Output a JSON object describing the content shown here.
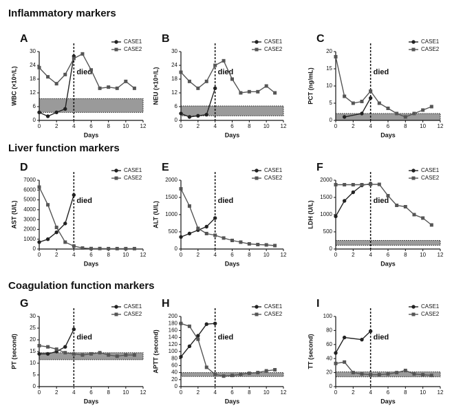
{
  "sections": [
    {
      "title": "Inflammatory markers"
    },
    {
      "title": "Liver function markers"
    },
    {
      "title": "Coagulation function markers"
    }
  ],
  "chart_data": [
    {
      "type": "line",
      "panel": "A",
      "ylabel": "WBC (×10⁹/L)",
      "xlabel": "Days",
      "xlim": [
        0,
        12
      ],
      "xticks": [
        0,
        2,
        4,
        6,
        8,
        10,
        12
      ],
      "ylim": [
        0,
        30
      ],
      "yticks": [
        0,
        6,
        12,
        18,
        24,
        30
      ],
      "series": [
        {
          "name": "CASE1",
          "color": "#222222",
          "marker": "circle",
          "x": [
            0,
            1,
            2,
            3,
            4
          ],
          "values": [
            3.5,
            1.8,
            3.5,
            5,
            28
          ]
        },
        {
          "name": "CASE2",
          "color": "#555555",
          "marker": "square",
          "x": [
            0,
            1,
            2,
            3,
            4,
            5,
            6,
            7,
            8,
            9,
            10,
            11
          ],
          "values": [
            23,
            19,
            16,
            20,
            27,
            29,
            22,
            14,
            14.5,
            14,
            17,
            14
          ]
        }
      ],
      "annotation": {
        "text": "died",
        "x": 4
      },
      "reference_range": [
        3.5,
        9.5
      ]
    },
    {
      "type": "line",
      "panel": "B",
      "ylabel": "NEU (×10⁹/L)",
      "xlabel": "Days",
      "xlim": [
        0,
        12
      ],
      "xticks": [
        0,
        2,
        4,
        6,
        8,
        10,
        12
      ],
      "ylim": [
        0,
        30
      ],
      "yticks": [
        0,
        6,
        12,
        18,
        24,
        30
      ],
      "series": [
        {
          "name": "CASE1",
          "color": "#222222",
          "marker": "circle",
          "x": [
            0,
            1,
            2,
            3,
            4
          ],
          "values": [
            3,
            1.5,
            2,
            2.5,
            14
          ]
        },
        {
          "name": "CASE2",
          "color": "#555555",
          "marker": "square",
          "x": [
            0,
            1,
            2,
            3,
            4,
            5,
            6,
            7,
            8,
            9,
            10,
            11
          ],
          "values": [
            21,
            17,
            14,
            17,
            24,
            26,
            18,
            12,
            12.5,
            12.5,
            15,
            12
          ]
        }
      ],
      "annotation": {
        "text": "died",
        "x": 4
      },
      "reference_range": [
        2,
        6.3
      ]
    },
    {
      "type": "line",
      "panel": "C",
      "ylabel": "PCT (ng/mL)",
      "xlabel": "Days",
      "xlim": [
        0,
        12
      ],
      "xticks": [
        0,
        2,
        4,
        6,
        8,
        10,
        12
      ],
      "ylim": [
        0,
        20
      ],
      "yticks": [
        0,
        5,
        10,
        15,
        20
      ],
      "series": [
        {
          "name": "CASE1",
          "color": "#222222",
          "marker": "circle",
          "x": [
            1,
            3,
            4
          ],
          "values": [
            1,
            2,
            6.5
          ]
        },
        {
          "name": "CASE2",
          "color": "#555555",
          "marker": "square",
          "x": [
            0,
            1,
            2,
            3,
            4,
            5,
            6,
            7,
            8,
            9,
            10,
            11
          ],
          "values": [
            18.5,
            7,
            5,
            5.5,
            8.5,
            5,
            3.5,
            2,
            1,
            2,
            3,
            4
          ]
        }
      ],
      "annotation": {
        "text": "died",
        "x": 4
      },
      "reference_range": [
        0,
        2
      ]
    },
    {
      "type": "line",
      "panel": "D",
      "ylabel": "AST (U/L)",
      "xlabel": "Days",
      "xlim": [
        0,
        12
      ],
      "xticks": [
        0,
        2,
        4,
        6,
        8,
        10,
        12
      ],
      "ylim": [
        0,
        7000
      ],
      "yticks": [
        0,
        1000,
        2000,
        3000,
        4000,
        5000,
        6000,
        7000
      ],
      "series": [
        {
          "name": "CASE1",
          "color": "#222222",
          "marker": "circle",
          "x": [
            0,
            1,
            2,
            3,
            4
          ],
          "values": [
            700,
            1000,
            1700,
            2600,
            5500
          ]
        },
        {
          "name": "CASE2",
          "color": "#555555",
          "marker": "square",
          "x": [
            0,
            1,
            2,
            3,
            4,
            5,
            6,
            7,
            8,
            9,
            10,
            11
          ],
          "values": [
            6300,
            4500,
            2200,
            700,
            300,
            100,
            50,
            50,
            40,
            40,
            40,
            40
          ]
        }
      ],
      "annotation": {
        "text": "died",
        "x": 4
      }
    },
    {
      "type": "line",
      "panel": "E",
      "ylabel": "ALT (U/L)",
      "xlabel": "Days",
      "xlim": [
        0,
        12
      ],
      "xticks": [
        0,
        2,
        4,
        6,
        8,
        10,
        12
      ],
      "ylim": [
        0,
        2000
      ],
      "yticks": [
        0,
        500,
        1000,
        1500,
        2000
      ],
      "series": [
        {
          "name": "CASE1",
          "color": "#222222",
          "marker": "circle",
          "x": [
            0,
            1,
            2,
            3,
            4
          ],
          "values": [
            350,
            450,
            550,
            650,
            900
          ]
        },
        {
          "name": "CASE2",
          "color": "#555555",
          "marker": "square",
          "x": [
            0,
            1,
            2,
            3,
            4,
            5,
            6,
            7,
            8,
            9,
            10,
            11
          ],
          "values": [
            1750,
            1250,
            600,
            450,
            400,
            320,
            250,
            200,
            150,
            130,
            120,
            100
          ]
        }
      ],
      "annotation": {
        "text": "died",
        "x": 4
      }
    },
    {
      "type": "line",
      "panel": "F",
      "ylabel": "LDH (U/L)",
      "xlabel": "Days",
      "xlim": [
        0,
        12
      ],
      "xticks": [
        0,
        2,
        4,
        6,
        8,
        10,
        12
      ],
      "ylim": [
        0,
        2000
      ],
      "yticks": [
        0,
        500,
        1000,
        1500,
        2000
      ],
      "series": [
        {
          "name": "CASE1",
          "color": "#222222",
          "marker": "circle",
          "x": [
            0,
            1,
            2,
            3,
            4
          ],
          "values": [
            950,
            1400,
            1650,
            1850,
            1900
          ]
        },
        {
          "name": "CASE2",
          "color": "#555555",
          "marker": "square",
          "x": [
            0,
            1,
            2,
            3,
            4,
            5,
            6,
            7,
            8,
            9,
            10,
            11
          ],
          "values": [
            1870,
            1870,
            1870,
            1870,
            1880,
            1880,
            1550,
            1270,
            1230,
            1000,
            900,
            700
          ]
        }
      ],
      "annotation": {
        "text": "died",
        "x": 4
      },
      "reference_range": [
        110,
        250
      ]
    },
    {
      "type": "line",
      "panel": "G",
      "ylabel": "PT (second)",
      "xlabel": "Days",
      "xlim": [
        0,
        12
      ],
      "xticks": [
        0,
        2,
        4,
        6,
        8,
        10,
        12
      ],
      "ylim": [
        0,
        30
      ],
      "yticks": [
        0,
        5,
        10,
        15,
        20,
        25,
        30
      ],
      "series": [
        {
          "name": "CASE1",
          "color": "#222222",
          "marker": "circle",
          "x": [
            0,
            1,
            2,
            3,
            4
          ],
          "values": [
            14,
            14,
            15,
            17,
            24.5
          ]
        },
        {
          "name": "CASE2",
          "color": "#555555",
          "marker": "square",
          "x": [
            0,
            1,
            2,
            3,
            4,
            5,
            6,
            7,
            8,
            9,
            10,
            11
          ],
          "values": [
            17.5,
            17,
            16,
            14.5,
            14,
            13.5,
            14,
            14.5,
            13.5,
            13,
            13.5,
            13.5
          ]
        }
      ],
      "annotation": {
        "text": "died",
        "x": 4
      },
      "reference_range": [
        11.5,
        14.5
      ]
    },
    {
      "type": "line",
      "panel": "H",
      "ylabel": "APTT (second)",
      "xlabel": "Days",
      "xlim": [
        0,
        12
      ],
      "xticks": [
        0,
        2,
        4,
        6,
        8,
        10,
        12
      ],
      "ylim": [
        0,
        200
      ],
      "yticks": [
        0,
        20,
        40,
        60,
        80,
        100,
        120,
        140,
        160,
        180,
        200
      ],
      "series": [
        {
          "name": "CASE1",
          "color": "#222222",
          "marker": "circle",
          "x": [
            0,
            1,
            2,
            3,
            4
          ],
          "values": [
            85,
            115,
            145,
            178,
            180
          ]
        },
        {
          "name": "CASE2",
          "color": "#555555",
          "marker": "square",
          "x": [
            0,
            1,
            2,
            3,
            4,
            5,
            6,
            7,
            8,
            9,
            10,
            11
          ],
          "values": [
            180,
            172,
            135,
            55,
            35,
            30,
            32,
            35,
            38,
            40,
            45,
            48
          ]
        }
      ],
      "annotation": {
        "text": "died",
        "x": 4
      },
      "reference_range": [
        29,
        40
      ]
    },
    {
      "type": "line",
      "panel": "I",
      "ylabel": "TT (second)",
      "xlabel": "Days",
      "xlim": [
        0,
        12
      ],
      "xticks": [
        0,
        2,
        4,
        6,
        8,
        10,
        12
      ],
      "ylim": [
        0,
        100
      ],
      "yticks": [
        0,
        20,
        40,
        60,
        80,
        100
      ],
      "series": [
        {
          "name": "CASE1",
          "color": "#222222",
          "marker": "circle",
          "x": [
            0,
            1,
            3,
            4
          ],
          "values": [
            48,
            70,
            67,
            79
          ]
        },
        {
          "name": "CASE2",
          "color": "#555555",
          "marker": "square",
          "x": [
            0,
            1,
            2,
            3,
            4,
            5,
            6,
            7,
            8,
            9,
            10,
            11
          ],
          "values": [
            33,
            35,
            20,
            18,
            17,
            17,
            18,
            20,
            23,
            18,
            17,
            16
          ]
        }
      ],
      "annotation": {
        "text": "died",
        "x": 4
      },
      "reference_range": [
        14,
        21
      ]
    }
  ]
}
